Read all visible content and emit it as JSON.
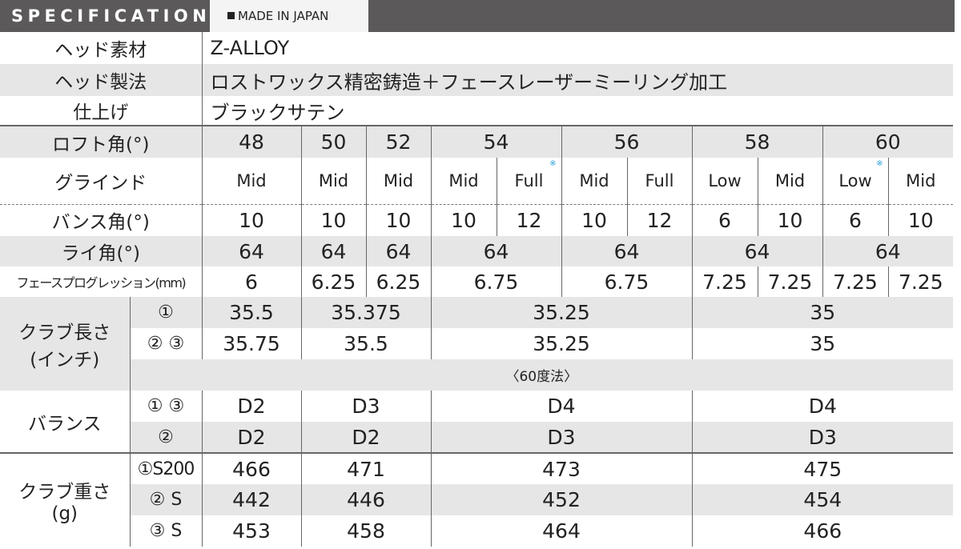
{
  "header": {
    "title": "SPECIFICATION",
    "made_in": "MADE IN JAPAN"
  },
  "head": {
    "material": {
      "label": "ヘッド素材",
      "value": "Z-ALLOY"
    },
    "method": {
      "label": "ヘッド製法",
      "value": "ロストワックス精密鋳造＋フェースレーザーミーリング加工"
    },
    "finish": {
      "label": "仕上げ",
      "value": "ブラックサテン"
    }
  },
  "loft": {
    "label": "ロフト角(°)",
    "values": [
      "48",
      "50",
      "52",
      "54",
      "56",
      "58",
      "60"
    ]
  },
  "grind": {
    "label": "グラインド",
    "values": [
      "Mid",
      "Mid",
      "Mid",
      "Mid",
      "Full",
      "Mid",
      "Full",
      "Low",
      "Mid",
      "Low",
      "Mid"
    ],
    "note_mark": "※",
    "note_color": "#2aa0e0"
  },
  "bounce": {
    "label": "バンス角(°)",
    "values": [
      "10",
      "10",
      "10",
      "10",
      "12",
      "10",
      "12",
      "6",
      "10",
      "6",
      "10"
    ]
  },
  "lie": {
    "label": "ライ角(°)",
    "values": [
      "64",
      "64",
      "64",
      "64",
      "64",
      "64",
      "64"
    ]
  },
  "face_progression": {
    "label": "フェースプログレッション(mm)",
    "values": [
      "6",
      "6.25",
      "6.25",
      "6.75",
      "6.75",
      "7.25",
      "7.25",
      "7.25",
      "7.25"
    ]
  },
  "length": {
    "label_line1": "クラブ長さ",
    "label_line2": "(インチ)",
    "rows": [
      {
        "sub": "①",
        "values": [
          "35.5",
          "35.375",
          "35.25",
          "35"
        ]
      },
      {
        "sub": "② ③",
        "values": [
          "35.75",
          "35.5",
          "35.25",
          "35"
        ]
      }
    ],
    "note": "〈60度法〉"
  },
  "balance": {
    "label": "バランス",
    "rows": [
      {
        "sub": "① ③",
        "values": [
          "D2",
          "D3",
          "D4",
          "D4"
        ]
      },
      {
        "sub": "②",
        "values": [
          "D2",
          "D2",
          "D3",
          "D3"
        ]
      }
    ]
  },
  "weight": {
    "label_line1": "クラブ重さ",
    "label_line2": "(g)",
    "rows": [
      {
        "sub": "①S200",
        "values": [
          "466",
          "471",
          "473",
          "475"
        ]
      },
      {
        "sub": "② S",
        "values": [
          "442",
          "446",
          "452",
          "454"
        ]
      },
      {
        "sub": "③ S",
        "values": [
          "453",
          "458",
          "464",
          "466"
        ]
      }
    ]
  },
  "colors": {
    "header_bg": "#5b5959",
    "row_gray": "#e6e6e6",
    "note": "#2aa0e0"
  }
}
